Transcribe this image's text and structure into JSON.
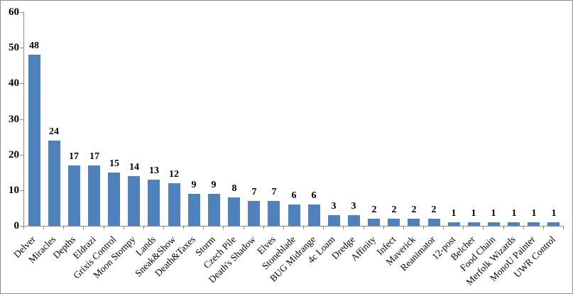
{
  "frame": {
    "background": "#ffffff",
    "border_color": "#8c8c8c"
  },
  "chart_data": {
    "type": "bar",
    "title": "",
    "xlabel": "",
    "ylabel": "",
    "categories": [
      "Delver",
      "Miracles",
      "Depths",
      "Eldrazi",
      "Grixis Control",
      "Moon Stompy",
      "Lands",
      "Sneak&Show",
      "Death&Taxes",
      "Storm",
      "Czech Pile",
      "Death's Shadow",
      "Elves",
      "Stoneblade",
      "BUG Midrange",
      "4c Loam",
      "Dredge",
      "Affinity",
      "Infect",
      "Maverick",
      "Reanimator",
      "12-post",
      "Belcher",
      "Food Chain",
      "Merfolk Wizards",
      "MonoU Painter",
      "UWR Control"
    ],
    "values": [
      48,
      24,
      17,
      17,
      15,
      14,
      13,
      12,
      9,
      9,
      8,
      7,
      7,
      6,
      6,
      3,
      3,
      2,
      2,
      2,
      2,
      1,
      1,
      1,
      1,
      1,
      1
    ],
    "data_labels_shown": true,
    "ylim": [
      0,
      60
    ],
    "yticks": [
      0,
      10,
      20,
      30,
      40,
      50,
      60
    ],
    "grid": false,
    "legend_position": "none",
    "bar_color": "#4F81BD",
    "axis_color": "#8a8a8a",
    "text_color": "#000000"
  }
}
